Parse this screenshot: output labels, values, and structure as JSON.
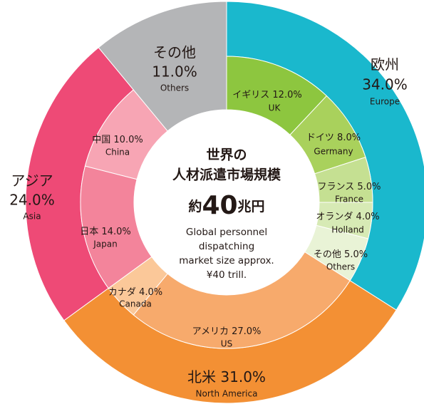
{
  "chart_data": {
    "type": "sunburst",
    "center_title": [
      "世界の",
      "人材派遣市場規模"
    ],
    "center_amount": {
      "prefix": "約",
      "number": "40",
      "suffix": "兆円"
    },
    "center_english": [
      "Global personnel",
      "dispatching",
      "market size approx.",
      "¥40 trill."
    ],
    "groups": [
      {
        "name": "欧州",
        "name_en": "Europe",
        "value": 34,
        "value_label": "34.0%",
        "color": "#1ab8cd",
        "children": [
          {
            "name": "イギリス",
            "name_en": "UK",
            "value": 12,
            "value_label": "12.0%",
            "color": "#8dc63f"
          },
          {
            "name": "ドイツ",
            "name_en": "Germany",
            "value": 8,
            "value_label": "8.0%",
            "color": "#a9d15c"
          },
          {
            "name": "フランス",
            "name_en": "France",
            "value": 5,
            "value_label": "5.0%",
            "color": "#c5e092"
          },
          {
            "name": "オランダ",
            "name_en": "Holland",
            "value": 4,
            "value_label": "4.0%",
            "color": "#d7eab5"
          },
          {
            "name": "その他",
            "name_en": "Others",
            "value": 5,
            "value_label": "5.0%",
            "color": "#e9f3d6"
          }
        ]
      },
      {
        "name": "北米",
        "name_en": "North America",
        "value": 31,
        "value_label": "31.0%",
        "color": "#f39034",
        "children": [
          {
            "name": "アメリカ",
            "name_en": "US",
            "value": 27,
            "value_label": "27.0%",
            "color": "#f7aa6c"
          },
          {
            "name": "カナダ",
            "name_en": "Canada",
            "value": 4,
            "value_label": "4.0%",
            "color": "#fbc899"
          }
        ]
      },
      {
        "name": "アジア",
        "name_en": "Asia",
        "value": 24,
        "value_label": "24.0%",
        "color": "#ee4a76",
        "children": [
          {
            "name": "日本",
            "name_en": "Japan",
            "value": 14,
            "value_label": "14.0%",
            "color": "#f3849b"
          },
          {
            "name": "中国",
            "name_en": "China",
            "value": 10,
            "value_label": "10.0%",
            "color": "#f7a5b4"
          }
        ]
      },
      {
        "name": "その他",
        "name_en": "Others",
        "value": 11,
        "value_label": "11.0%",
        "color": "#b4b5b7",
        "children": []
      }
    ]
  }
}
